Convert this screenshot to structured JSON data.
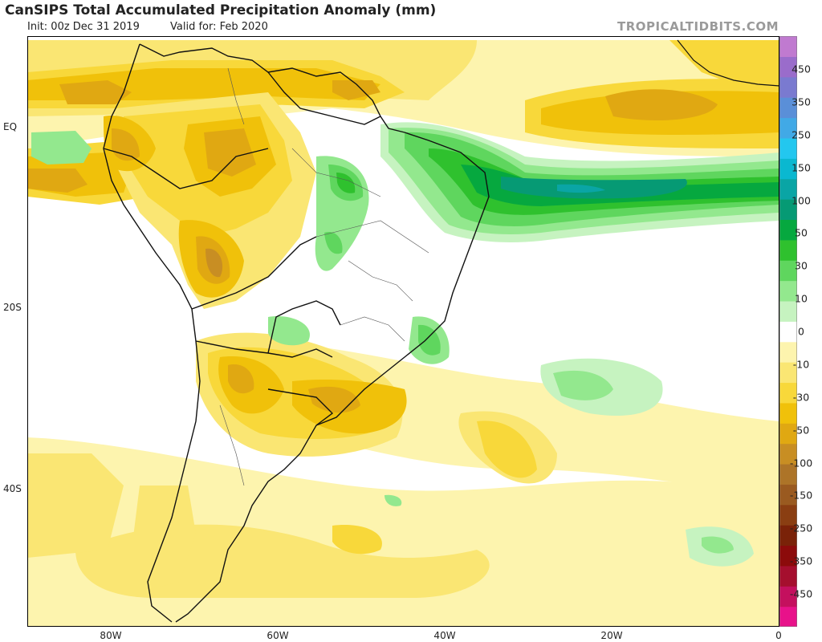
{
  "header": {
    "title": "CanSIPS Total Accumulated Precipitation Anomaly (mm)",
    "init": "Init: 00z Dec 31 2019",
    "valid": "Valid for: Feb 2020",
    "brand": "TROPICALTIDBITS.COM"
  },
  "axes": {
    "lat_labels": [
      "EQ",
      "20S",
      "40S"
    ],
    "lon_labels": [
      "80W",
      "60W",
      "40W",
      "20W",
      "0"
    ]
  },
  "colorbar": {
    "labels": [
      "450",
      "350",
      "250",
      "150",
      "100",
      "50",
      "30",
      "10",
      "0",
      "-10",
      "-30",
      "-50",
      "-100",
      "-150",
      "-250",
      "-350",
      "-450"
    ],
    "colors": [
      "#e8128a",
      "#c4105e",
      "#a50f2e",
      "#8c0b0b",
      "#7a2208",
      "#8a3e12",
      "#9a5a20",
      "#ad7428",
      "#c88e23",
      "#e0a812",
      "#f0c10a",
      "#f8d83a",
      "#fae673",
      "#fdf4ae",
      "#ffffff",
      "#c6f3c0",
      "#93e88e",
      "#5fd65e",
      "#2fc12e",
      "#06a83f",
      "#069a74",
      "#0aa5a5",
      "#0ab8d0",
      "#23c7ef",
      "#41a9e6",
      "#5a8fd8",
      "#7a7ad0",
      "#9a6ccb",
      "#c07ad0"
    ]
  }
}
